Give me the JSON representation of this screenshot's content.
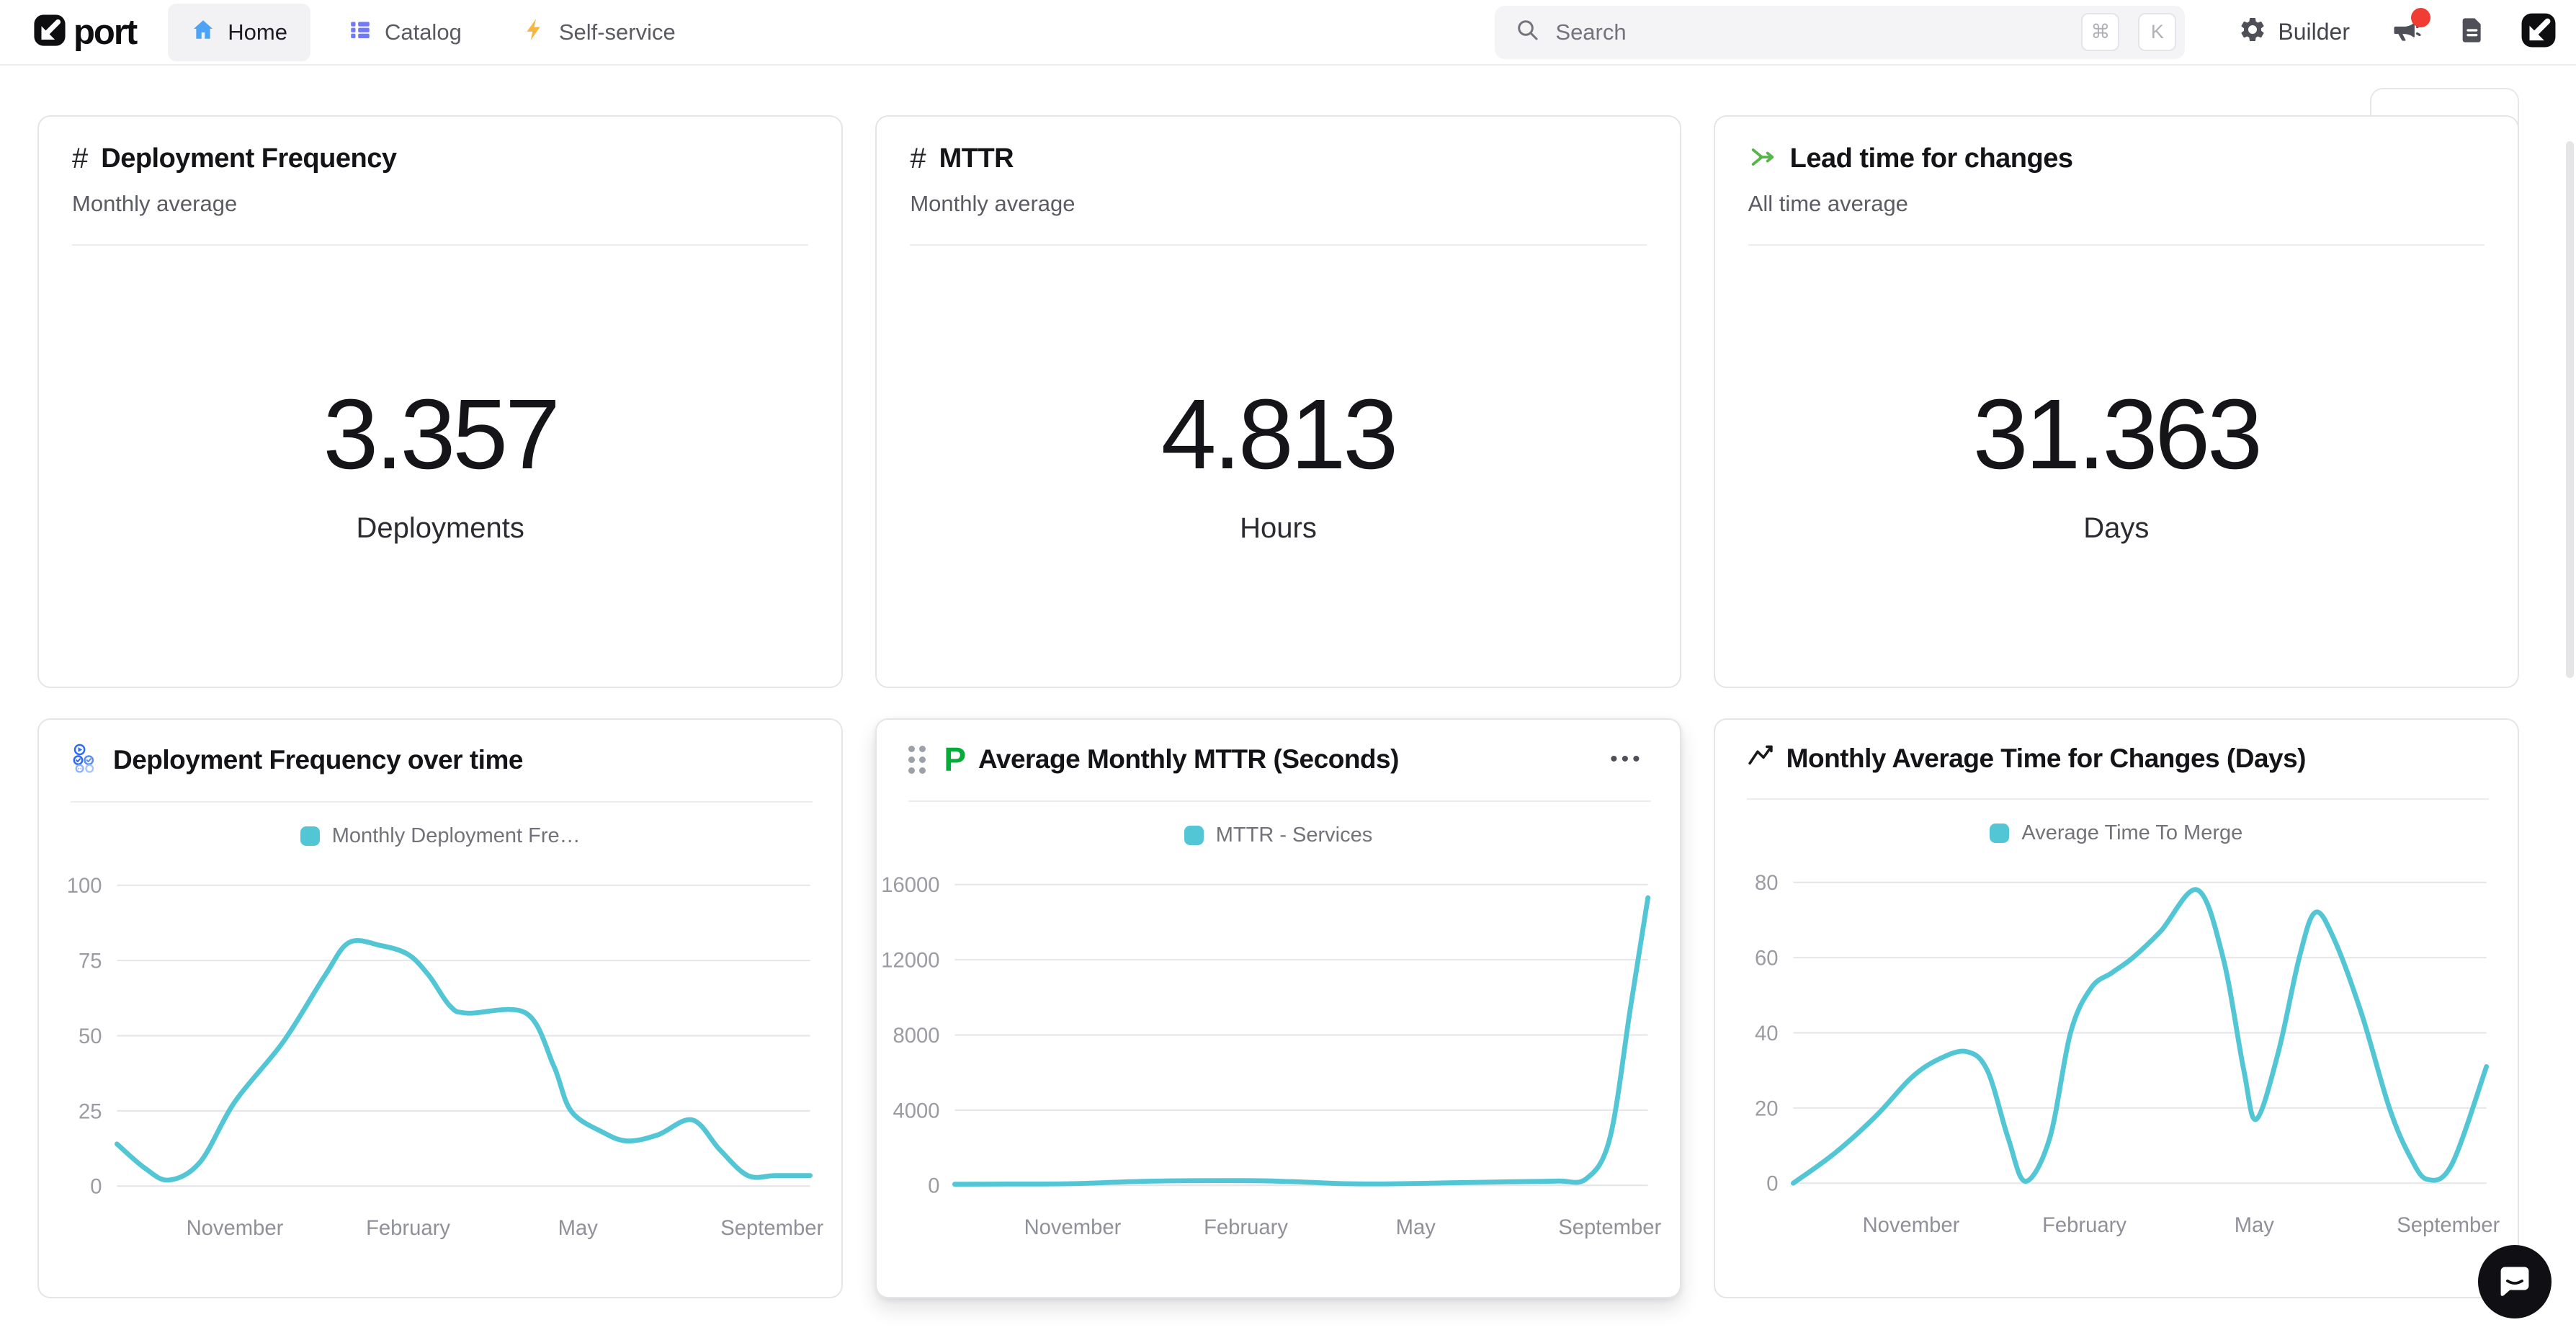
{
  "navbar": {
    "logo": {
      "text": "port"
    },
    "tabs": [
      {
        "label": "Home",
        "active": true
      },
      {
        "label": "Catalog",
        "active": false
      },
      {
        "label": "Self-service",
        "active": false
      }
    ],
    "search": {
      "placeholder": "Search",
      "shortcuts": [
        "⌘",
        "K"
      ]
    },
    "builder_label": "Builder"
  },
  "metric_cards": [
    {
      "icon": "hash-icon",
      "title": "Deployment Frequency",
      "subtitle": "Monthly average",
      "value": "3.357",
      "unit": "Deployments"
    },
    {
      "icon": "hash-icon",
      "title": "MTTR",
      "subtitle": "Monthly average",
      "value": "4.813",
      "unit": "Hours"
    },
    {
      "icon": "merge-arrow-icon",
      "title": "Lead time for changes",
      "subtitle": "All time average",
      "value": "31.363",
      "unit": "Days"
    }
  ],
  "chart_data": [
    {
      "type": "line",
      "title": "Deployment Frequency over time",
      "icon": "workflow-icon",
      "legend": "Monthly Deployment Fre…",
      "series_name": "Monthly Deployment Frequency",
      "color": "#53c6d6",
      "grid": true,
      "legend_position": "top-center",
      "ylim": [
        0,
        100
      ],
      "yticks": [
        0,
        25,
        50,
        75,
        100
      ],
      "xlabels": [
        {
          "label": "November",
          "x": 0.17
        },
        {
          "label": "February",
          "x": 0.42
        },
        {
          "label": "May",
          "x": 0.665
        },
        {
          "label": "September",
          "x": 0.945
        }
      ],
      "points": [
        [
          0,
          14
        ],
        [
          0.04,
          6
        ],
        [
          0.075,
          2
        ],
        [
          0.12,
          8
        ],
        [
          0.17,
          28
        ],
        [
          0.24,
          48
        ],
        [
          0.3,
          70
        ],
        [
          0.335,
          81
        ],
        [
          0.38,
          80
        ],
        [
          0.42,
          77
        ],
        [
          0.45,
          70
        ],
        [
          0.48,
          60
        ],
        [
          0.505,
          57.5
        ],
        [
          0.59,
          57.5
        ],
        [
          0.63,
          40
        ],
        [
          0.655,
          25
        ],
        [
          0.7,
          18
        ],
        [
          0.736,
          15
        ],
        [
          0.78,
          17
        ],
        [
          0.83,
          22
        ],
        [
          0.87,
          12
        ],
        [
          0.91,
          3.5
        ],
        [
          0.95,
          3.5
        ],
        [
          1,
          3.5
        ]
      ]
    },
    {
      "type": "line",
      "title": "Average Monthly MTTR (Seconds)",
      "icon": "pagerduty-icon",
      "legend": "MTTR - Services",
      "series_name": "MTTR - Services",
      "color": "#53c6d6",
      "grid": true,
      "legend_position": "top-center",
      "menu": "•••",
      "ylim": [
        0,
        16000
      ],
      "yticks": [
        0,
        4000,
        8000,
        12000,
        16000
      ],
      "xlabels": [
        {
          "label": "November",
          "x": 0.17
        },
        {
          "label": "February",
          "x": 0.42
        },
        {
          "label": "May",
          "x": 0.665
        },
        {
          "label": "September",
          "x": 0.945
        }
      ],
      "points": [
        [
          0,
          60
        ],
        [
          0.08,
          70
        ],
        [
          0.17,
          90
        ],
        [
          0.28,
          220
        ],
        [
          0.42,
          250
        ],
        [
          0.5,
          180
        ],
        [
          0.56,
          90
        ],
        [
          0.63,
          80
        ],
        [
          0.72,
          140
        ],
        [
          0.8,
          190
        ],
        [
          0.87,
          230
        ],
        [
          0.91,
          320
        ],
        [
          0.945,
          2500
        ],
        [
          0.975,
          9500
        ],
        [
          1,
          15300
        ]
      ]
    },
    {
      "type": "line",
      "title": "Monthly Average Time for Changes (Days)",
      "icon": "trend-icon",
      "legend": "Average Time To Merge",
      "series_name": "Average Time To Merge",
      "color": "#53c6d6",
      "grid": true,
      "legend_position": "top-center",
      "ylim": [
        0,
        80
      ],
      "yticks": [
        0,
        20,
        40,
        60,
        80
      ],
      "xlabels": [
        {
          "label": "November",
          "x": 0.17
        },
        {
          "label": "February",
          "x": 0.42
        },
        {
          "label": "May",
          "x": 0.665
        },
        {
          "label": "September",
          "x": 0.945
        }
      ],
      "points": [
        [
          0,
          0
        ],
        [
          0.06,
          8
        ],
        [
          0.12,
          18
        ],
        [
          0.17,
          28
        ],
        [
          0.21,
          33
        ],
        [
          0.25,
          35
        ],
        [
          0.28,
          30
        ],
        [
          0.31,
          12
        ],
        [
          0.335,
          0.5
        ],
        [
          0.37,
          12
        ],
        [
          0.4,
          40
        ],
        [
          0.43,
          52
        ],
        [
          0.46,
          56
        ],
        [
          0.49,
          60
        ],
        [
          0.53,
          67
        ],
        [
          0.583,
          78
        ],
        [
          0.62,
          60
        ],
        [
          0.65,
          30
        ],
        [
          0.668,
          17
        ],
        [
          0.7,
          35
        ],
        [
          0.73,
          60
        ],
        [
          0.753,
          72
        ],
        [
          0.78,
          65
        ],
        [
          0.82,
          45
        ],
        [
          0.86,
          20
        ],
        [
          0.89,
          7
        ],
        [
          0.915,
          1
        ],
        [
          0.95,
          5
        ],
        [
          1,
          31
        ]
      ]
    }
  ],
  "colors": {
    "line_teal": "#53c6d6",
    "active_tab_bg": "#f2f2f4",
    "home_icon_blue": "#4da3f5",
    "catalog_icon_purple": "#7179f7",
    "bolt_yellow": "#f6b742",
    "merge_green": "#58b44c",
    "pagerduty_green": "#06ac38",
    "notification_red": "#f03c32"
  }
}
